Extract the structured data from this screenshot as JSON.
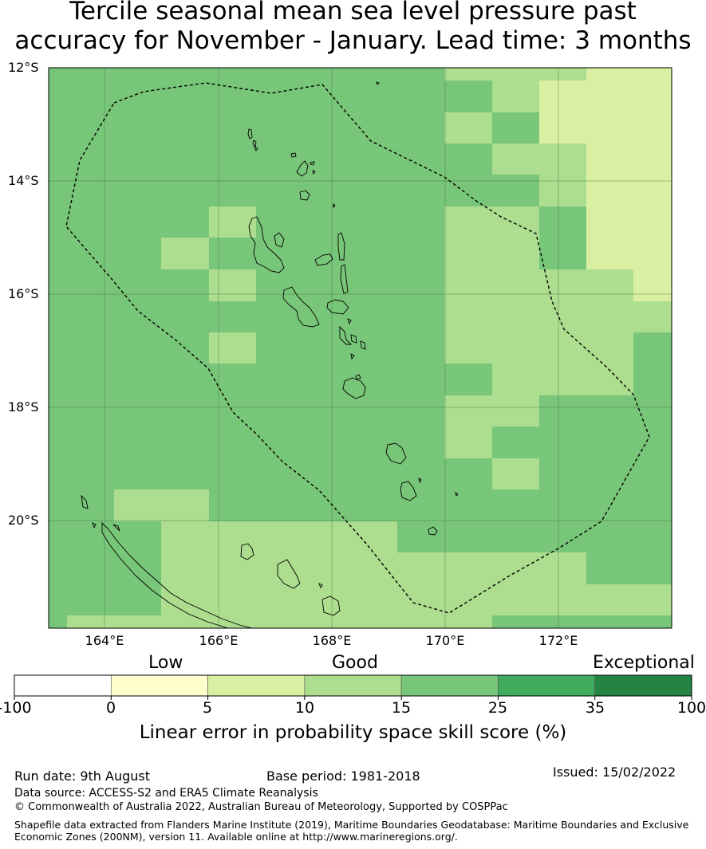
{
  "title": {
    "line1": "Tercile seasonal mean sea level pressure past",
    "line2": "accuracy for November - January. Lead time: 3 months"
  },
  "map": {
    "lat_labels": [
      "12°S",
      "14°S",
      "16°S",
      "18°S",
      "20°S"
    ],
    "lon_labels": [
      "164°E",
      "166°E",
      "168°E",
      "170°E",
      "172°E"
    ],
    "extent": {
      "lon_min": 163.0,
      "lon_max": 174.0,
      "lat_min": -21.9,
      "lat_max": -12.0
    },
    "grid_on": true,
    "eez_boundary_style": "dashed"
  },
  "legend": {
    "categories": [
      "Low",
      "Good",
      "Exceptional"
    ],
    "tick_labels": [
      "-100",
      "0",
      "5",
      "10",
      "15",
      "25",
      "35",
      "100"
    ],
    "bins": [
      {
        "range": "-100 to 0",
        "color": "#ffffff"
      },
      {
        "range": "0 to 5",
        "color": "#ffffcc"
      },
      {
        "range": "5 to 10",
        "color": "#d9f0a3"
      },
      {
        "range": "10 to 15",
        "color": "#addd8e"
      },
      {
        "range": "15 to 25",
        "color": "#78c679"
      },
      {
        "range": "25 to 35",
        "color": "#41ab5d"
      },
      {
        "range": "35 to 100",
        "color": "#238443"
      }
    ],
    "title": "Linear error in probability space skill score (%)"
  },
  "footer": {
    "run_date": "Run date: 9th August",
    "base_period": "Base period: 1981-2018",
    "issued": "Issued: 15/02/2022",
    "data_source": "Data source: ACCESS-S2 and ERA5 Climate Reanalysis",
    "copyright": "© Commonwealth of Australia 2022, Australian Bureau of Meteorology, Supported by COSPPac",
    "shapefile_line1": "Shapefile data extracted from Flanders Marine Institute (2019), Maritime Boundaries Geodatabase: Maritime Boundaries and Exclusive",
    "shapefile_line2": "Economic Zones (200NM), version 11. Available online at http://www.marineregions.org/."
  }
}
